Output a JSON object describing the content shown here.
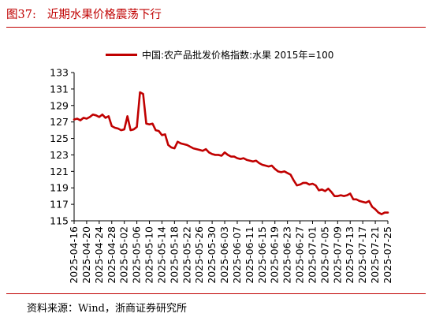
{
  "figure": {
    "number": "图37:",
    "title": "近期水果价格震荡下行",
    "source": "资料来源：Wind，浙商证券研究所"
  },
  "colors": {
    "accent": "#c00000",
    "series": "#c00000",
    "axis": "#000000"
  },
  "chart_data": {
    "type": "line",
    "title": "",
    "xlabel": "",
    "ylabel": "",
    "ylim": [
      115,
      133
    ],
    "yticks": [
      115,
      117,
      119,
      121,
      123,
      125,
      127,
      129,
      131,
      133
    ],
    "grid": false,
    "legend": "top",
    "tick_dates": [
      "2025-04-16",
      "2025-04-20",
      "2025-04-24",
      "2025-04-28",
      "2025-05-02",
      "2025-05-06",
      "2025-05-10",
      "2025-05-14",
      "2025-05-18",
      "2025-05-22",
      "2025-05-26",
      "2025-05-30",
      "2025-06-03",
      "2025-06-07",
      "2025-06-11",
      "2025-06-15",
      "2025-06-19",
      "2025-06-23",
      "2025-06-27",
      "2025-07-01",
      "2025-07-05",
      "2025-07-09",
      "2025-07-13",
      "2025-07-17",
      "2025-07-21",
      "2025-07-25"
    ],
    "series": [
      {
        "name": "中国:农产品批发价格指数:水果 2015年=100",
        "points": [
          [
            "2025-04-16",
            127.3
          ],
          [
            "2025-04-17",
            127.4
          ],
          [
            "2025-04-18",
            127.2
          ],
          [
            "2025-04-19",
            127.5
          ],
          [
            "2025-04-20",
            127.4
          ],
          [
            "2025-04-21",
            127.6
          ],
          [
            "2025-04-22",
            127.9
          ],
          [
            "2025-04-23",
            127.8
          ],
          [
            "2025-04-24",
            127.6
          ],
          [
            "2025-04-25",
            127.9
          ],
          [
            "2025-04-26",
            127.5
          ],
          [
            "2025-04-27",
            127.7
          ],
          [
            "2025-04-28",
            126.5
          ],
          [
            "2025-04-29",
            126.3
          ],
          [
            "2025-04-30",
            126.2
          ],
          [
            "2025-05-01",
            126.0
          ],
          [
            "2025-05-02",
            126.1
          ],
          [
            "2025-05-03",
            127.7
          ],
          [
            "2025-05-04",
            126.0
          ],
          [
            "2025-05-05",
            126.1
          ],
          [
            "2025-05-06",
            126.4
          ],
          [
            "2025-05-07",
            130.6
          ],
          [
            "2025-05-08",
            130.4
          ],
          [
            "2025-05-09",
            126.8
          ],
          [
            "2025-05-10",
            126.7
          ],
          [
            "2025-05-11",
            126.8
          ],
          [
            "2025-05-12",
            126.0
          ],
          [
            "2025-05-13",
            125.9
          ],
          [
            "2025-05-14",
            125.4
          ],
          [
            "2025-05-15",
            125.5
          ],
          [
            "2025-05-16",
            124.2
          ],
          [
            "2025-05-17",
            123.9
          ],
          [
            "2025-05-18",
            123.8
          ],
          [
            "2025-05-19",
            124.6
          ],
          [
            "2025-05-20",
            124.4
          ],
          [
            "2025-05-21",
            124.3
          ],
          [
            "2025-05-22",
            124.2
          ],
          [
            "2025-05-23",
            124.0
          ],
          [
            "2025-05-24",
            123.8
          ],
          [
            "2025-05-25",
            123.7
          ],
          [
            "2025-05-26",
            123.6
          ],
          [
            "2025-05-27",
            123.5
          ],
          [
            "2025-05-28",
            123.7
          ],
          [
            "2025-05-29",
            123.3
          ],
          [
            "2025-05-30",
            123.1
          ],
          [
            "2025-05-31",
            123.0
          ],
          [
            "2025-06-01",
            123.0
          ],
          [
            "2025-06-02",
            122.9
          ],
          [
            "2025-06-03",
            123.3
          ],
          [
            "2025-06-04",
            123.0
          ],
          [
            "2025-06-05",
            122.8
          ],
          [
            "2025-06-06",
            122.8
          ],
          [
            "2025-06-07",
            122.6
          ],
          [
            "2025-06-08",
            122.5
          ],
          [
            "2025-06-09",
            122.6
          ],
          [
            "2025-06-10",
            122.4
          ],
          [
            "2025-06-11",
            122.3
          ],
          [
            "2025-06-12",
            122.2
          ],
          [
            "2025-06-13",
            122.3
          ],
          [
            "2025-06-14",
            122.0
          ],
          [
            "2025-06-15",
            121.8
          ],
          [
            "2025-06-16",
            121.7
          ],
          [
            "2025-06-17",
            121.6
          ],
          [
            "2025-06-18",
            121.7
          ],
          [
            "2025-06-19",
            121.3
          ],
          [
            "2025-06-20",
            121.0
          ],
          [
            "2025-06-21",
            120.9
          ],
          [
            "2025-06-22",
            121.0
          ],
          [
            "2025-06-23",
            120.8
          ],
          [
            "2025-06-24",
            120.6
          ],
          [
            "2025-06-25",
            119.9
          ],
          [
            "2025-06-26",
            119.3
          ],
          [
            "2025-06-27",
            119.4
          ],
          [
            "2025-06-28",
            119.6
          ],
          [
            "2025-06-29",
            119.6
          ],
          [
            "2025-06-30",
            119.4
          ],
          [
            "2025-07-01",
            119.5
          ],
          [
            "2025-07-02",
            119.3
          ],
          [
            "2025-07-03",
            118.7
          ],
          [
            "2025-07-04",
            118.8
          ],
          [
            "2025-07-05",
            118.6
          ],
          [
            "2025-07-06",
            118.9
          ],
          [
            "2025-07-07",
            118.5
          ],
          [
            "2025-07-08",
            118.0
          ],
          [
            "2025-07-09",
            118.0
          ],
          [
            "2025-07-10",
            118.1
          ],
          [
            "2025-07-11",
            118.0
          ],
          [
            "2025-07-12",
            118.1
          ],
          [
            "2025-07-13",
            118.3
          ],
          [
            "2025-07-14",
            117.6
          ],
          [
            "2025-07-15",
            117.6
          ],
          [
            "2025-07-16",
            117.4
          ],
          [
            "2025-07-17",
            117.3
          ],
          [
            "2025-07-18",
            117.2
          ],
          [
            "2025-07-19",
            117.4
          ],
          [
            "2025-07-20",
            116.7
          ],
          [
            "2025-07-21",
            116.4
          ],
          [
            "2025-07-22",
            116.0
          ],
          [
            "2025-07-23",
            115.8
          ],
          [
            "2025-07-24",
            116.0
          ],
          [
            "2025-07-25",
            116.0
          ]
        ]
      }
    ]
  }
}
